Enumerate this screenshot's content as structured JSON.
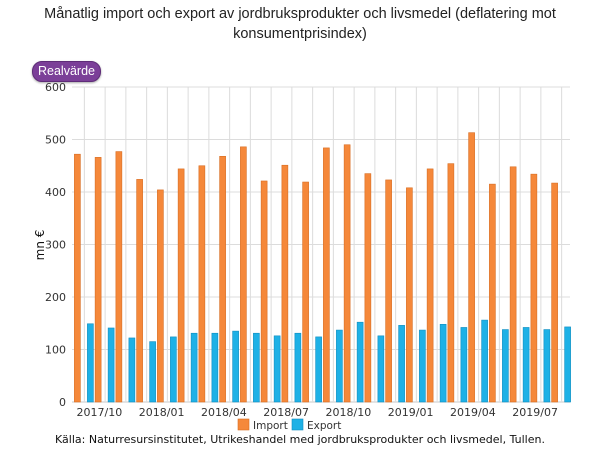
{
  "chart_data": {
    "type": "bar",
    "title": "Månatlig import och export av jordbruksprodukter och livsmedel (deflatering mot konsumentprisindex)",
    "badge": "Realvärde",
    "xlabel": "",
    "ylabel": "mn €",
    "ylim": [
      0,
      600
    ],
    "yticks": [
      0,
      100,
      200,
      300,
      400,
      500,
      600
    ],
    "grid": true,
    "legend_position": "bottom",
    "categories": [
      "2017/10",
      "2017/11",
      "2017/12",
      "2018/01",
      "2018/02",
      "2018/03",
      "2018/04",
      "2018/05",
      "2018/06",
      "2018/07",
      "2018/08",
      "2018/09",
      "2018/10",
      "2018/11",
      "2018/12",
      "2019/01",
      "2019/02",
      "2019/03",
      "2019/04",
      "2019/05",
      "2019/06",
      "2019/07",
      "2019/08",
      "2019/09"
    ],
    "xtick_labels": [
      "2017/10",
      "2018/01",
      "2018/04",
      "2018/07",
      "2018/10",
      "2019/01",
      "2019/04",
      "2019/07"
    ],
    "series": [
      {
        "name": "Import",
        "color": "#f5883a",
        "values": [
          472,
          466,
          477,
          424,
          404,
          444,
          450,
          468,
          486,
          421,
          451,
          419,
          484,
          490,
          435,
          423,
          408,
          444,
          454,
          513,
          415,
          448,
          434,
          417
        ]
      },
      {
        "name": "Export",
        "color": "#1eb1e6",
        "values": [
          149,
          141,
          122,
          115,
          124,
          131,
          131,
          135,
          131,
          126,
          131,
          124,
          137,
          152,
          126,
          146,
          137,
          148,
          142,
          156,
          138,
          142,
          138,
          143
        ]
      }
    ],
    "source": "Källa: Naturresursinstitutet, Utrikeshandel med jordbruksprodukter och livsmedel, Tullen."
  }
}
